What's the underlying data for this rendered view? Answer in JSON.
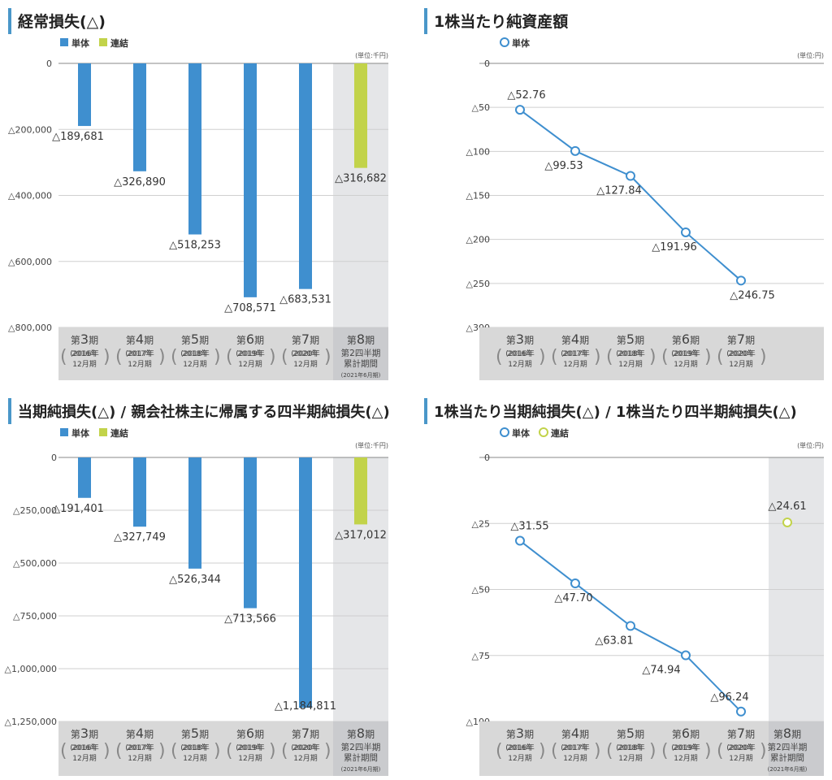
{
  "colors": {
    "single": "#3f8fcf",
    "consolidated": "#c2d34a",
    "title_accent": "#4a97c9",
    "grid": "#cfcfcf",
    "label_band": "#d8d8d8",
    "highlight_band": "#e5e6e8"
  },
  "legend": {
    "single": "単体",
    "consolidated": "連結"
  },
  "periods": [
    {
      "name": "第",
      "num": "3",
      "suffix": "期",
      "sub1": "2016年",
      "sub2": "12月期"
    },
    {
      "name": "第",
      "num": "4",
      "suffix": "期",
      "sub1": "2017年",
      "sub2": "12月期"
    },
    {
      "name": "第",
      "num": "5",
      "suffix": "期",
      "sub1": "2018年",
      "sub2": "12月期"
    },
    {
      "name": "第",
      "num": "6",
      "suffix": "期",
      "sub1": "2019年",
      "sub2": "12月期"
    },
    {
      "name": "第",
      "num": "7",
      "suffix": "期",
      "sub1": "2020年",
      "sub2": "12月期"
    },
    {
      "name": "第",
      "num": "8",
      "suffix": "期",
      "sub1": "第2四半期",
      "sub2": "累計期間",
      "sub3": "(2021年6月期)"
    }
  ],
  "chart_data": [
    {
      "id": "ordinary-loss",
      "type": "bar",
      "title": "経常損失(△)",
      "unit": "(単位:千円)",
      "ylim": [
        -800000,
        0
      ],
      "y_ticks": [
        0,
        -200000,
        -400000,
        -600000,
        -800000
      ],
      "y_tick_labels": [
        "0",
        "△200,000",
        "△400,000",
        "△600,000",
        "△800,000"
      ],
      "categories": [
        "第3期 (2016年12月期)",
        "第4期 (2017年12月期)",
        "第5期 (2018年12月期)",
        "第6期 (2019年12月期)",
        "第7期 (2020年12月期)",
        "第8期 第2四半期累計期間 (2021年6月期)"
      ],
      "legend": [
        "単体",
        "連結"
      ],
      "series": [
        {
          "name": "単体",
          "values": [
            -189681,
            -326890,
            -518253,
            -708571,
            -683531,
            null
          ],
          "labels": [
            "△189,681",
            "△326,890",
            "△518,253",
            "△708,571",
            "△683,531",
            ""
          ]
        },
        {
          "name": "連結",
          "values": [
            null,
            null,
            null,
            null,
            null,
            -316682
          ],
          "labels": [
            "",
            "",
            "",
            "",
            "",
            "△316,682"
          ]
        }
      ]
    },
    {
      "id": "bps",
      "type": "line",
      "title": "1株当たり純資産額",
      "unit": "(単位:円)",
      "ylim": [
        -300,
        0
      ],
      "y_ticks": [
        0,
        -50,
        -100,
        -150,
        -200,
        -250,
        -300
      ],
      "y_tick_labels": [
        "0",
        "△50",
        "△100",
        "△150",
        "△200",
        "△250",
        "△300"
      ],
      "categories": [
        "第3期 (2016年12月期)",
        "第4期 (2017年12月期)",
        "第5期 (2018年12月期)",
        "第6期 (2019年12月期)",
        "第7期 (2020年12月期)"
      ],
      "legend": [
        "単体"
      ],
      "series": [
        {
          "name": "単体",
          "values": [
            -52.76,
            -99.53,
            -127.84,
            -191.96,
            -246.75
          ],
          "labels": [
            "△52.76",
            "△99.53",
            "△127.84",
            "△191.96",
            "△246.75"
          ]
        }
      ]
    },
    {
      "id": "net-loss",
      "type": "bar",
      "title": "当期純損失(△) / 親会社株主に帰属する四半期純損失(△)",
      "unit": "(単位:千円)",
      "ylim": [
        -1250000,
        0
      ],
      "y_ticks": [
        0,
        -250000,
        -500000,
        -750000,
        -1000000,
        -1250000
      ],
      "y_tick_labels": [
        "0",
        "△250,000",
        "△500,000",
        "△750,000",
        "△1,000,000",
        "△1,250,000"
      ],
      "categories": [
        "第3期 (2016年12月期)",
        "第4期 (2017年12月期)",
        "第5期 (2018年12月期)",
        "第6期 (2019年12月期)",
        "第7期 (2020年12月期)",
        "第8期 第2四半期累計期間 (2021年6月期)"
      ],
      "legend": [
        "単体",
        "連結"
      ],
      "series": [
        {
          "name": "単体",
          "values": [
            -191401,
            -327749,
            -526344,
            -713566,
            -1184811,
            null
          ],
          "labels": [
            "△191,401",
            "△327,749",
            "△526,344",
            "△713,566",
            "△1,184,811",
            ""
          ]
        },
        {
          "name": "連結",
          "values": [
            null,
            null,
            null,
            null,
            null,
            -317012
          ],
          "labels": [
            "",
            "",
            "",
            "",
            "",
            "△317,012"
          ]
        }
      ]
    },
    {
      "id": "eps",
      "type": "line",
      "title": "1株当たり当期純損失(△) / 1株当たり四半期純損失(△)",
      "unit": "(単位:円)",
      "ylim": [
        -100,
        0
      ],
      "y_ticks": [
        0,
        -25,
        -50,
        -75,
        -100
      ],
      "y_tick_labels": [
        "0",
        "△25",
        "△50",
        "△75",
        "△100"
      ],
      "categories": [
        "第3期 (2016年12月期)",
        "第4期 (2017年12月期)",
        "第5期 (2018年12月期)",
        "第6期 (2019年12月期)",
        "第7期 (2020年12月期)",
        "第8期 第2四半期累計期間 (2021年6月期)"
      ],
      "legend": [
        "単体",
        "連結"
      ],
      "series": [
        {
          "name": "単体",
          "values": [
            -31.55,
            -47.7,
            -63.81,
            -74.94,
            -96.24,
            null
          ],
          "labels": [
            "△31.55",
            "△47.70",
            "△63.81",
            "△74.94",
            "△96.24",
            ""
          ]
        },
        {
          "name": "連結",
          "values": [
            null,
            null,
            null,
            null,
            null,
            -24.61
          ],
          "labels": [
            "",
            "",
            "",
            "",
            "",
            "△24.61"
          ]
        }
      ]
    }
  ]
}
